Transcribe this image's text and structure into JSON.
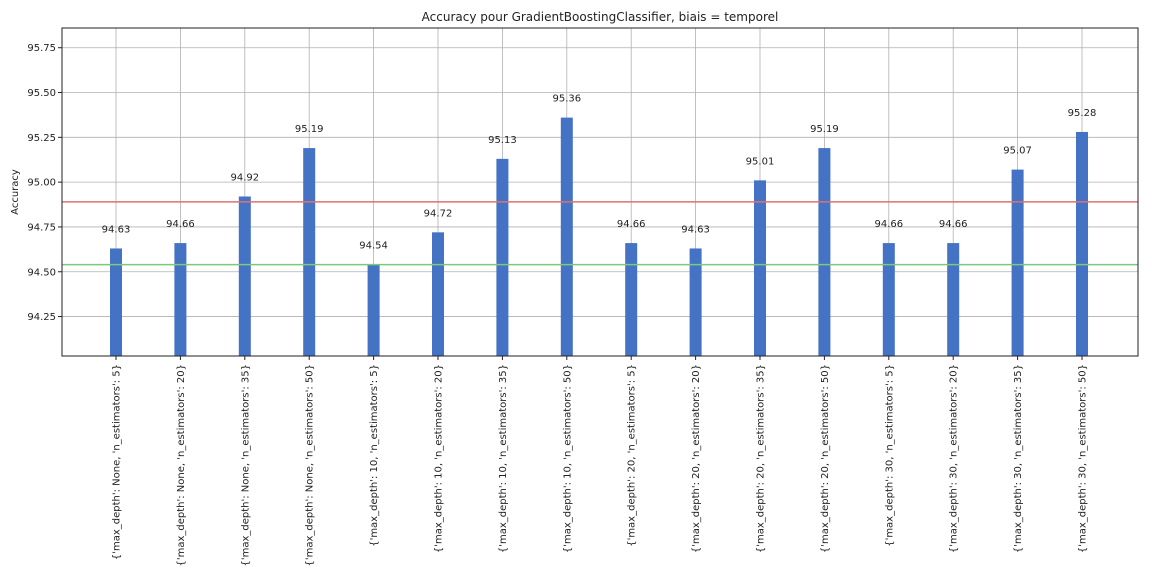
{
  "chart_data": {
    "type": "bar",
    "title": "Accuracy pour GradientBoostingClassifier, biais = temporel",
    "xlabel": "",
    "ylabel": "Accuracy",
    "ylim": [
      94.03,
      95.86
    ],
    "yticks": [
      "94.25",
      "94.50",
      "94.75",
      "95.00",
      "95.25",
      "95.50",
      "95.75"
    ],
    "grid": true,
    "bar_color": "#4472c4",
    "categories": [
      "{'max_depth': None, 'n_estimators': 5}",
      "{'max_depth': None, 'n_estimators': 20}",
      "{'max_depth': None, 'n_estimators': 35}",
      "{'max_depth': None, 'n_estimators': 50}",
      "{'max_depth': 10, 'n_estimators': 5}",
      "{'max_depth': 10, 'n_estimators': 20}",
      "{'max_depth': 10, 'n_estimators': 35}",
      "{'max_depth': 10, 'n_estimators': 50}",
      "{'max_depth': 20, 'n_estimators': 5}",
      "{'max_depth': 20, 'n_estimators': 20}",
      "{'max_depth': 20, 'n_estimators': 35}",
      "{'max_depth': 20, 'n_estimators': 50}",
      "{'max_depth': 30, 'n_estimators': 5}",
      "{'max_depth': 30, 'n_estimators': 20}",
      "{'max_depth': 30, 'n_estimators': 35}",
      "{'max_depth': 30, 'n_estimators': 50}"
    ],
    "values": [
      94.63,
      94.66,
      94.92,
      95.19,
      94.54,
      94.72,
      95.13,
      95.36,
      94.66,
      94.63,
      95.01,
      95.19,
      94.66,
      94.66,
      95.07,
      95.28
    ],
    "value_labels": [
      "94.63",
      "94.66",
      "94.92",
      "95.19",
      "94.54",
      "94.72",
      "95.13",
      "95.36",
      "94.66",
      "94.63",
      "95.01",
      "95.19",
      "94.66",
      "94.66",
      "95.07",
      "95.28"
    ],
    "reference_lines": [
      {
        "value": 94.89,
        "color": "#e07070"
      },
      {
        "value": 94.54,
        "color": "#7cc97c"
      }
    ]
  }
}
